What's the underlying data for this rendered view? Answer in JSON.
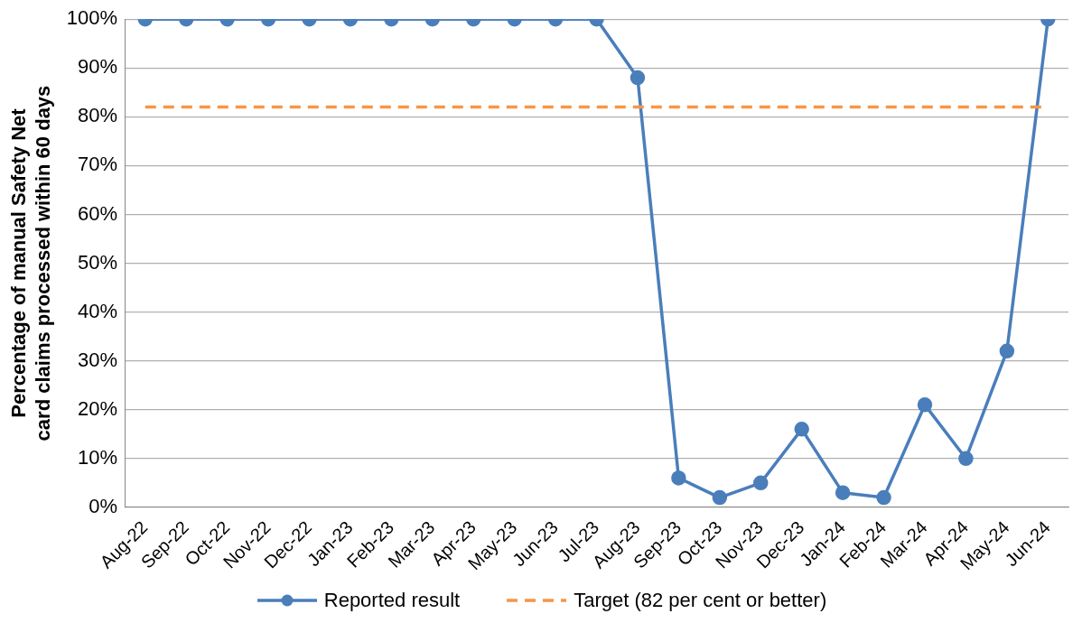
{
  "chart_data": {
    "type": "line",
    "ylabel": "Percentage of manual Safety Net card claims processed within 60 days",
    "categories": [
      "Aug-22",
      "Sep-22",
      "Oct-22",
      "Nov-22",
      "Dec-22",
      "Jan-23",
      "Feb-23",
      "Mar-23",
      "Apr-23",
      "May-23",
      "Jun-23",
      "Jul-23",
      "Aug-23",
      "Sep-23",
      "Oct-23",
      "Nov-23",
      "Dec-23",
      "Jan-24",
      "Feb-24",
      "Mar-24",
      "Apr-24",
      "May-24",
      "Jun-24"
    ],
    "series": [
      {
        "name": "Reported result",
        "color": "#4a7ebb",
        "values": [
          100,
          100,
          100,
          100,
          100,
          100,
          100,
          100,
          100,
          100,
          100,
          100,
          88,
          6,
          2,
          5,
          16,
          3,
          2,
          21,
          10,
          32,
          100
        ]
      }
    ],
    "ref_lines": [
      {
        "axis": "y",
        "value": 82,
        "label": "Target (82 per cent or better)",
        "color": "#f79646",
        "line_style": "dashed"
      }
    ],
    "ylim": [
      0,
      100
    ],
    "yticks": [
      {
        "value": 0,
        "label": "0%"
      },
      {
        "value": 10,
        "label": "10%"
      },
      {
        "value": 20,
        "label": "20%"
      },
      {
        "value": 30,
        "label": "30%"
      },
      {
        "value": 40,
        "label": "40%"
      },
      {
        "value": 50,
        "label": "50%"
      },
      {
        "value": 60,
        "label": "60%"
      },
      {
        "value": 70,
        "label": "70%"
      },
      {
        "value": 80,
        "label": "80%"
      },
      {
        "value": 90,
        "label": "90%"
      },
      {
        "value": 100,
        "label": "100%"
      }
    ],
    "grid": "y",
    "legend": "bottom",
    "marker": "circle",
    "line_style": "solid"
  }
}
